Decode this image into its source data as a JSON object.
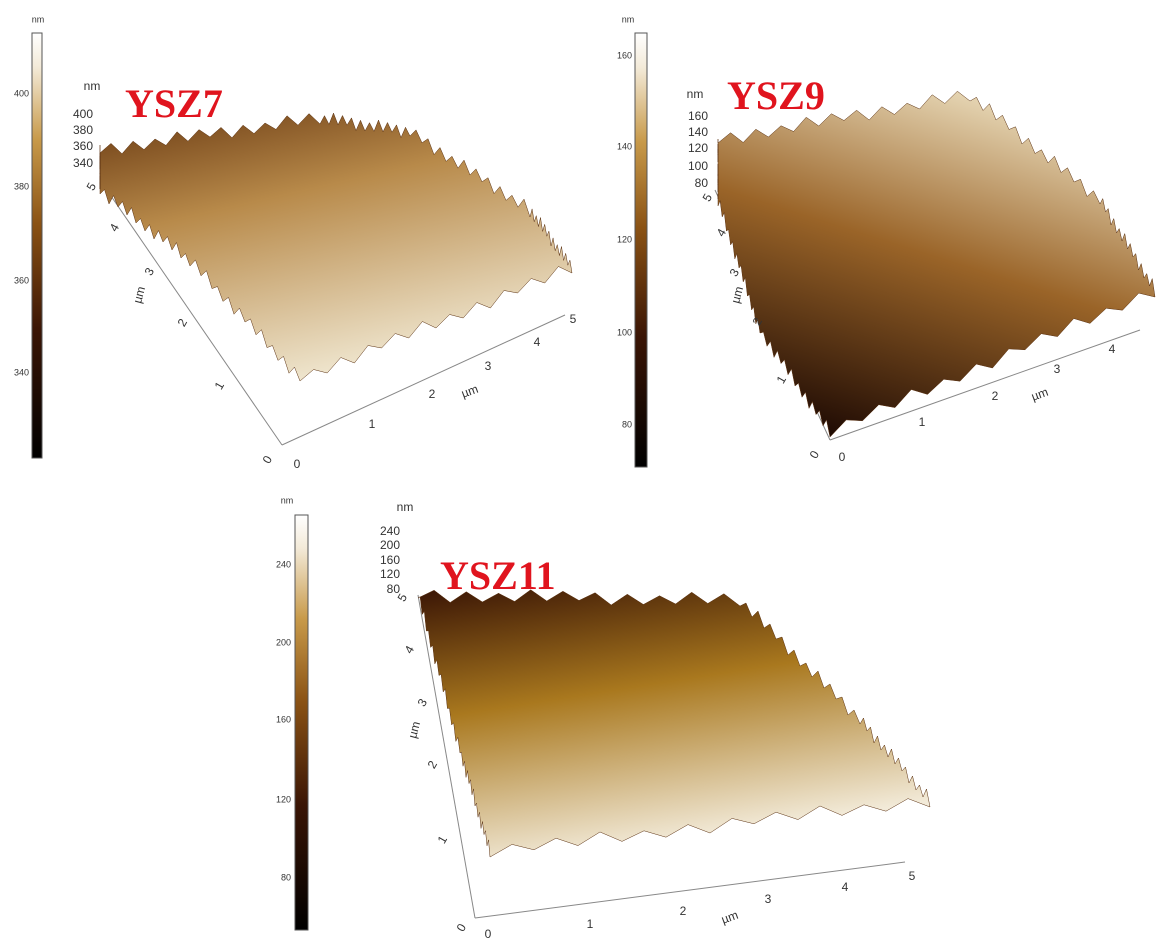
{
  "panels": [
    {
      "title": "YSZ7",
      "colorbar": {
        "unit": "nm",
        "ticks": [
          "400",
          "380",
          "360",
          "340"
        ]
      },
      "z_axis": {
        "unit": "nm",
        "ticks": [
          "400",
          "380",
          "360",
          "340"
        ]
      },
      "y_axis": {
        "label": "µm",
        "ticks": [
          "5",
          "4",
          "3",
          "2",
          "1",
          "0"
        ]
      },
      "x_axis": {
        "label": "µm",
        "ticks": [
          "0",
          "1",
          "2",
          "3",
          "4",
          "5"
        ]
      }
    },
    {
      "title": "YSZ9",
      "colorbar": {
        "unit": "nm",
        "ticks": [
          "160",
          "140",
          "120",
          "100",
          "80"
        ]
      },
      "z_axis": {
        "unit": "nm",
        "ticks": [
          "160",
          "140",
          "120",
          "100",
          "80"
        ]
      },
      "y_axis": {
        "label": "µm",
        "ticks": [
          "5",
          "4",
          "3",
          "2",
          "1",
          "0"
        ]
      },
      "x_axis": {
        "label": "µm",
        "ticks": [
          "0",
          "1",
          "2",
          "3",
          "4"
        ]
      }
    },
    {
      "title": "YSZ11",
      "colorbar": {
        "unit": "nm",
        "ticks": [
          "240",
          "200",
          "160",
          "120",
          "80"
        ]
      },
      "z_axis": {
        "unit": "nm",
        "ticks": [
          "240",
          "200",
          "160",
          "120",
          "80"
        ]
      },
      "y_axis": {
        "label": "µm",
        "ticks": [
          "5",
          "4",
          "3",
          "2",
          "1",
          "0"
        ]
      },
      "x_axis": {
        "label": "µm",
        "ticks": [
          "0",
          "1",
          "2",
          "3",
          "4",
          "5"
        ]
      }
    }
  ]
}
